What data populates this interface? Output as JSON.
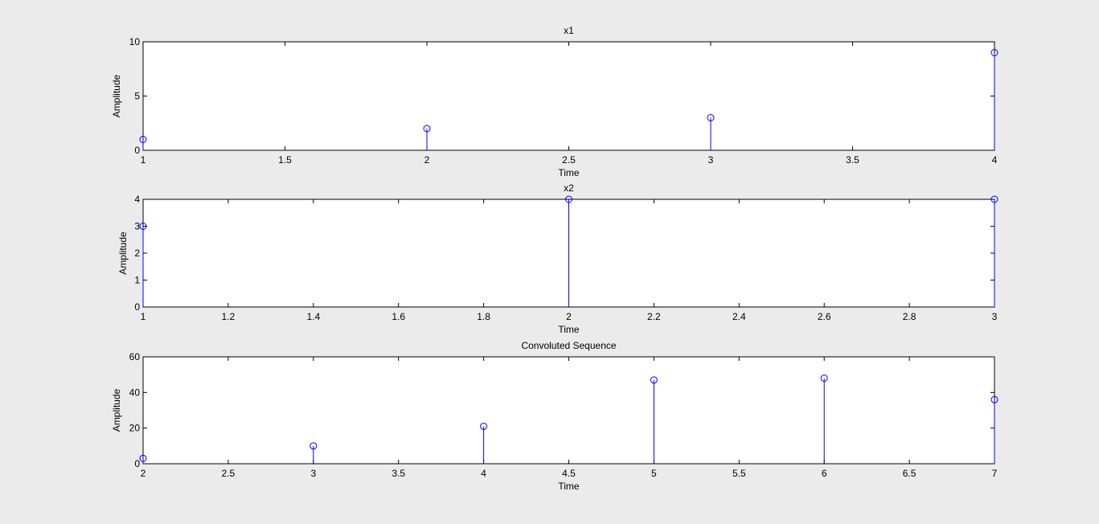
{
  "window": {
    "background": "#ebebeb",
    "axes_background": "#ffffff"
  },
  "chart_data": [
    {
      "type": "stem",
      "title": "x1",
      "xlabel": "Time",
      "ylabel": "Amplitude",
      "xlim": [
        1,
        4
      ],
      "ylim": [
        0,
        10
      ],
      "xticks": [
        "1",
        "1.5",
        "2",
        "2.5",
        "3",
        "3.5",
        "4"
      ],
      "yticks": [
        "0",
        "5",
        "10"
      ],
      "grid": false,
      "series": [
        {
          "x": [
            1,
            2,
            3,
            4
          ],
          "values": [
            1,
            2,
            3,
            9
          ],
          "color": "#0000ff",
          "marker": "circle"
        }
      ]
    },
    {
      "type": "stem",
      "title": "x2",
      "xlabel": "Time",
      "ylabel": "Amplitude",
      "xlim": [
        1,
        3
      ],
      "ylim": [
        0,
        4
      ],
      "xticks": [
        "1",
        "1.2",
        "1.4",
        "1.6",
        "1.8",
        "2",
        "2.2",
        "2.4",
        "2.6",
        "2.8",
        "3"
      ],
      "yticks": [
        "0",
        "1",
        "2",
        "3",
        "4"
      ],
      "grid": false,
      "series": [
        {
          "x": [
            1,
            2,
            3
          ],
          "values": [
            3,
            4,
            4
          ],
          "color": "#0000ff",
          "marker": "circle"
        }
      ]
    },
    {
      "type": "stem",
      "title": "Convoluted Sequence",
      "xlabel": "Time",
      "ylabel": "Amplitude",
      "xlim": [
        2,
        7
      ],
      "ylim": [
        0,
        60
      ],
      "xticks": [
        "2",
        "2.5",
        "3",
        "3.5",
        "4",
        "4.5",
        "5",
        "5.5",
        "6",
        "6.5",
        "7"
      ],
      "yticks": [
        "0",
        "20",
        "40",
        "60"
      ],
      "grid": false,
      "series": [
        {
          "x": [
            2,
            3,
            4,
            5,
            6,
            7
          ],
          "values": [
            3,
            10,
            21,
            47,
            48,
            36
          ],
          "color": "#0000ff",
          "marker": "circle"
        }
      ]
    }
  ]
}
